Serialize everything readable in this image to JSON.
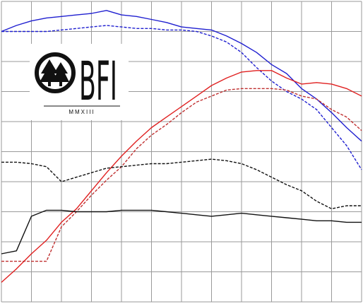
{
  "chart_data": {
    "type": "line",
    "annotations": [
      "BFI",
      "MMXIII"
    ],
    "x": [
      0,
      0.5,
      1,
      1.5,
      2,
      2.5,
      3,
      3.5,
      4,
      4.5,
      5,
      5.5,
      6,
      6.5,
      7,
      7.5,
      8,
      8.5,
      9,
      9.5,
      10,
      10.5,
      11,
      11.5,
      12
    ],
    "xlim": [
      0,
      12
    ],
    "ylim": [
      0,
      10
    ],
    "grid": true,
    "series": [
      {
        "color": "#1f1fd0",
        "dashed": false,
        "values": [
          9.0,
          9.2,
          9.35,
          9.45,
          9.5,
          9.55,
          9.6,
          9.7,
          9.55,
          9.5,
          9.4,
          9.3,
          9.15,
          9.1,
          9.05,
          8.85,
          8.6,
          8.3,
          7.9,
          7.6,
          7.1,
          6.75,
          6.3,
          5.8,
          5.35
        ]
      },
      {
        "color": "#1f1fd0",
        "dashed": true,
        "values": [
          9.0,
          9.0,
          9.0,
          9.0,
          9.05,
          9.1,
          9.15,
          9.2,
          9.15,
          9.1,
          9.1,
          9.05,
          9.05,
          9.0,
          8.85,
          8.65,
          8.3,
          7.8,
          7.35,
          7.0,
          6.75,
          6.4,
          5.8,
          5.2,
          4.4
        ]
      },
      {
        "color": "#e02020",
        "dashed": false,
        "values": [
          0.65,
          1.1,
          1.6,
          2.05,
          2.65,
          3.1,
          3.7,
          4.3,
          4.85,
          5.35,
          5.8,
          6.15,
          6.5,
          6.85,
          7.2,
          7.45,
          7.65,
          7.7,
          7.7,
          7.45,
          7.25,
          7.3,
          7.25,
          7.1,
          6.85
        ]
      },
      {
        "color": "#c03030",
        "dashed": true,
        "values": [
          1.35,
          1.35,
          1.35,
          1.35,
          2.5,
          3.0,
          3.55,
          4.05,
          4.5,
          5.1,
          5.55,
          5.9,
          6.3,
          6.65,
          6.85,
          7.05,
          7.1,
          7.1,
          7.1,
          7.05,
          6.85,
          6.75,
          6.4,
          6.15,
          5.7
        ]
      },
      {
        "color": "#111111",
        "dashed": true,
        "values": [
          4.65,
          4.65,
          4.6,
          4.5,
          4.0,
          4.15,
          4.3,
          4.45,
          4.5,
          4.55,
          4.6,
          4.6,
          4.65,
          4.7,
          4.75,
          4.7,
          4.6,
          4.4,
          4.15,
          3.9,
          3.7,
          3.35,
          3.1,
          3.2,
          3.2
        ]
      },
      {
        "color": "#111111",
        "dashed": false,
        "values": [
          1.6,
          1.7,
          2.85,
          3.05,
          3.05,
          3.0,
          3.0,
          3.0,
          3.05,
          3.05,
          3.05,
          3.0,
          2.95,
          2.9,
          2.85,
          2.9,
          2.95,
          2.9,
          2.85,
          2.8,
          2.75,
          2.7,
          2.7,
          2.65,
          2.65
        ]
      }
    ]
  }
}
